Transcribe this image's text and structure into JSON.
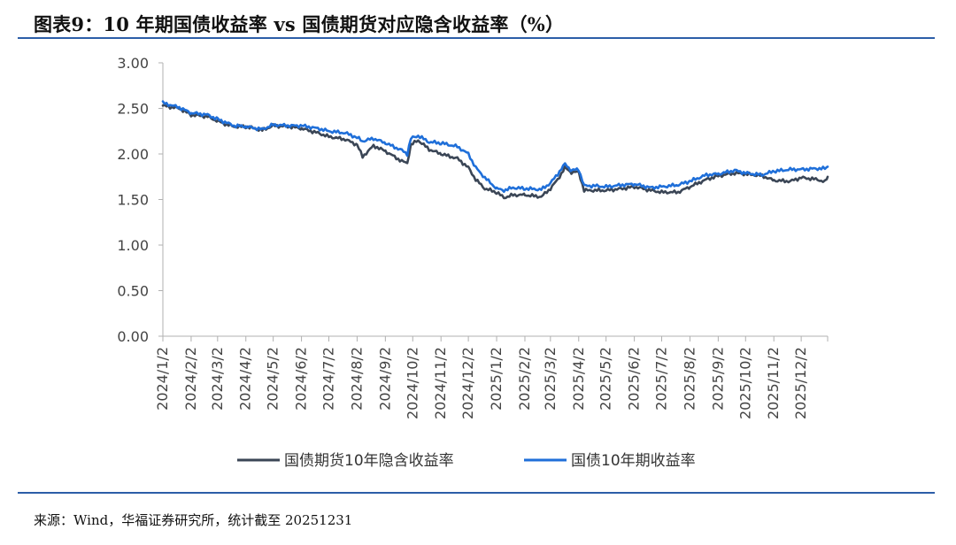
{
  "header": {
    "title": "图表9：10 年期国债收益率 vs  国债期货对应隐含收益率（%）"
  },
  "footer": {
    "source": "来源：Wind，华福证券研究所，统计截至 20251231"
  },
  "colors": {
    "series_futures": "#3b4656",
    "series_bond": "#1f6fd9",
    "rule": "#2c5ea8",
    "axis": "#b0b0b0"
  },
  "chart_data": {
    "type": "line",
    "title": "10 年期国债收益率 vs  国债期货对应隐含收益率（%）",
    "xlabel": "",
    "ylabel": "",
    "ylim": [
      0,
      3
    ],
    "y_ticks": [
      "0.00",
      "0.50",
      "1.00",
      "1.50",
      "2.00",
      "2.50",
      "3.00"
    ],
    "categories": [
      "2024/1/2",
      "2024/2/2",
      "2024/3/2",
      "2024/4/2",
      "2024/5/2",
      "2024/6/2",
      "2024/7/2",
      "2024/8/2",
      "2024/9/2",
      "2024/10/2",
      "2024/11/2",
      "2024/12/2",
      "2025/1/2",
      "2025/2/2",
      "2025/3/2",
      "2025/4/2",
      "2025/5/2",
      "2025/6/2",
      "2025/7/2",
      "2025/8/2",
      "2025/9/2",
      "2025/10/2",
      "2025/11/2",
      "2025/12/2"
    ],
    "x_end": "2025/12/31",
    "grid": false,
    "legend_position": "bottom",
    "series": [
      {
        "name": "国债期货10年隐含收益率",
        "color": "#3b4656",
        "points": [
          [
            "2024/1/2",
            2.53
          ],
          [
            "2024/1/20",
            2.5
          ],
          [
            "2024/2/2",
            2.43
          ],
          [
            "2024/2/20",
            2.41
          ],
          [
            "2024/3/2",
            2.36
          ],
          [
            "2024/3/10",
            2.33
          ],
          [
            "2024/3/20",
            2.3
          ],
          [
            "2024/4/2",
            2.3
          ],
          [
            "2024/4/20",
            2.26
          ],
          [
            "2024/5/2",
            2.31
          ],
          [
            "2024/5/20",
            2.3
          ],
          [
            "2024/6/2",
            2.28
          ],
          [
            "2024/6/20",
            2.23
          ],
          [
            "2024/7/2",
            2.19
          ],
          [
            "2024/7/20",
            2.16
          ],
          [
            "2024/8/2",
            2.1
          ],
          [
            "2024/8/8",
            1.97
          ],
          [
            "2024/8/20",
            2.09
          ],
          [
            "2024/9/2",
            2.03
          ],
          [
            "2024/9/20",
            1.92
          ],
          [
            "2024/9/26",
            1.9
          ],
          [
            "2024/9/30",
            2.1
          ],
          [
            "2024/10/8",
            2.15
          ],
          [
            "2024/10/20",
            2.05
          ],
          [
            "2024/11/2",
            2.0
          ],
          [
            "2024/11/20",
            1.95
          ],
          [
            "2024/12/2",
            1.85
          ],
          [
            "2024/12/10",
            1.72
          ],
          [
            "2024/12/20",
            1.62
          ],
          [
            "2025/1/2",
            1.58
          ],
          [
            "2025/1/10",
            1.52
          ],
          [
            "2025/1/20",
            1.55
          ],
          [
            "2025/2/2",
            1.55
          ],
          [
            "2025/2/20",
            1.53
          ],
          [
            "2025/3/2",
            1.62
          ],
          [
            "2025/3/10",
            1.72
          ],
          [
            "2025/3/18",
            1.85
          ],
          [
            "2025/3/25",
            1.8
          ],
          [
            "2025/4/2",
            1.8
          ],
          [
            "2025/4/8",
            1.6
          ],
          [
            "2025/4/20",
            1.6
          ],
          [
            "2025/5/2",
            1.6
          ],
          [
            "2025/5/20",
            1.62
          ],
          [
            "2025/6/2",
            1.64
          ],
          [
            "2025/6/20",
            1.6
          ],
          [
            "2025/7/2",
            1.58
          ],
          [
            "2025/7/20",
            1.58
          ],
          [
            "2025/8/2",
            1.64
          ],
          [
            "2025/8/20",
            1.72
          ],
          [
            "2025/9/2",
            1.76
          ],
          [
            "2025/9/20",
            1.79
          ],
          [
            "2025/10/2",
            1.78
          ],
          [
            "2025/10/20",
            1.76
          ],
          [
            "2025/11/2",
            1.71
          ],
          [
            "2025/11/20",
            1.7
          ],
          [
            "2025/12/2",
            1.74
          ],
          [
            "2025/12/20",
            1.72
          ],
          [
            "2025/12/28",
            1.69
          ],
          [
            "2025/12/31",
            1.75
          ]
        ]
      },
      {
        "name": "国债10年期收益率",
        "color": "#1f6fd9",
        "points": [
          [
            "2024/1/2",
            2.56
          ],
          [
            "2024/1/20",
            2.51
          ],
          [
            "2024/2/2",
            2.45
          ],
          [
            "2024/2/20",
            2.43
          ],
          [
            "2024/3/2",
            2.38
          ],
          [
            "2024/3/10",
            2.35
          ],
          [
            "2024/3/20",
            2.31
          ],
          [
            "2024/4/2",
            2.3
          ],
          [
            "2024/4/20",
            2.27
          ],
          [
            "2024/5/2",
            2.32
          ],
          [
            "2024/5/20",
            2.31
          ],
          [
            "2024/6/2",
            2.31
          ],
          [
            "2024/6/20",
            2.28
          ],
          [
            "2024/7/2",
            2.25
          ],
          [
            "2024/7/20",
            2.23
          ],
          [
            "2024/8/2",
            2.18
          ],
          [
            "2024/8/8",
            2.14
          ],
          [
            "2024/8/20",
            2.17
          ],
          [
            "2024/9/2",
            2.12
          ],
          [
            "2024/9/20",
            2.04
          ],
          [
            "2024/9/26",
            2.0
          ],
          [
            "2024/9/30",
            2.17
          ],
          [
            "2024/10/8",
            2.2
          ],
          [
            "2024/10/20",
            2.13
          ],
          [
            "2024/11/2",
            2.12
          ],
          [
            "2024/11/20",
            2.08
          ],
          [
            "2024/12/2",
            2.0
          ],
          [
            "2024/12/10",
            1.85
          ],
          [
            "2024/12/20",
            1.74
          ],
          [
            "2025/1/2",
            1.62
          ],
          [
            "2025/1/10",
            1.6
          ],
          [
            "2025/1/20",
            1.63
          ],
          [
            "2025/2/2",
            1.62
          ],
          [
            "2025/2/20",
            1.61
          ],
          [
            "2025/3/2",
            1.68
          ],
          [
            "2025/3/10",
            1.78
          ],
          [
            "2025/3/18",
            1.89
          ],
          [
            "2025/3/25",
            1.82
          ],
          [
            "2025/4/2",
            1.83
          ],
          [
            "2025/4/8",
            1.65
          ],
          [
            "2025/4/20",
            1.65
          ],
          [
            "2025/5/2",
            1.64
          ],
          [
            "2025/5/20",
            1.66
          ],
          [
            "2025/6/2",
            1.67
          ],
          [
            "2025/6/20",
            1.63
          ],
          [
            "2025/7/2",
            1.64
          ],
          [
            "2025/7/20",
            1.66
          ],
          [
            "2025/8/2",
            1.7
          ],
          [
            "2025/8/20",
            1.77
          ],
          [
            "2025/9/2",
            1.78
          ],
          [
            "2025/9/20",
            1.82
          ],
          [
            "2025/10/2",
            1.79
          ],
          [
            "2025/10/20",
            1.77
          ],
          [
            "2025/11/2",
            1.81
          ],
          [
            "2025/11/20",
            1.83
          ],
          [
            "2025/12/2",
            1.83
          ],
          [
            "2025/12/20",
            1.84
          ],
          [
            "2025/12/28",
            1.84
          ],
          [
            "2025/12/31",
            1.86
          ]
        ]
      }
    ]
  }
}
